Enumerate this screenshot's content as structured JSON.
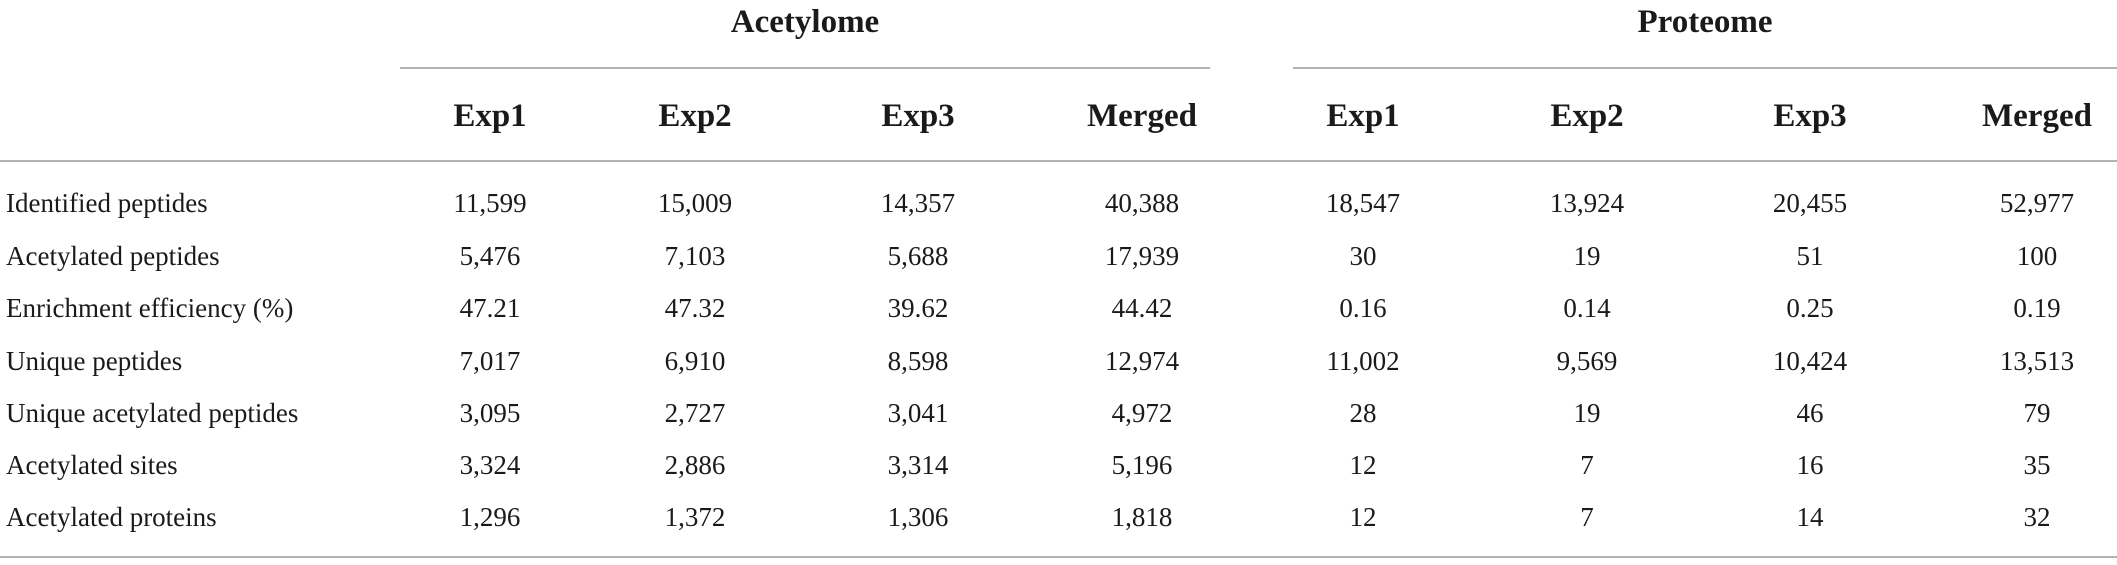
{
  "table": {
    "groups": [
      {
        "title": "Acetylome",
        "columns": [
          "Exp1",
          "Exp2",
          "Exp3",
          "Merged"
        ]
      },
      {
        "title": "Proteome",
        "columns": [
          "Exp1",
          "Exp2",
          "Exp3",
          "Merged"
        ]
      }
    ],
    "rows": [
      {
        "label": "Identified peptides",
        "values": [
          "11,599",
          "15,009",
          "14,357",
          "40,388",
          "18,547",
          "13,924",
          "20,455",
          "52,977"
        ]
      },
      {
        "label": "Acetylated peptides",
        "values": [
          "5,476",
          "7,103",
          "5,688",
          "17,939",
          "30",
          "19",
          "51",
          "100"
        ]
      },
      {
        "label": "Enrichment efficiency (%)",
        "values": [
          "47.21",
          "47.32",
          "39.62",
          "44.42",
          "0.16",
          "0.14",
          "0.25",
          "0.19"
        ]
      },
      {
        "label": "Unique peptides",
        "values": [
          "7,017",
          "6,910",
          "8,598",
          "12,974",
          "11,002",
          "9,569",
          "10,424",
          "13,513"
        ]
      },
      {
        "label": "Unique acetylated peptides",
        "values": [
          "3,095",
          "2,727",
          "3,041",
          "4,972",
          "28",
          "19",
          "46",
          "79"
        ]
      },
      {
        "label": "Acetylated sites",
        "values": [
          "3,324",
          "2,886",
          "3,314",
          "5,196",
          "12",
          "7",
          "16",
          "35"
        ]
      },
      {
        "label": "Acetylated proteins",
        "values": [
          "1,296",
          "1,372",
          "1,306",
          "1,818",
          "12",
          "7",
          "14",
          "32"
        ]
      }
    ]
  }
}
